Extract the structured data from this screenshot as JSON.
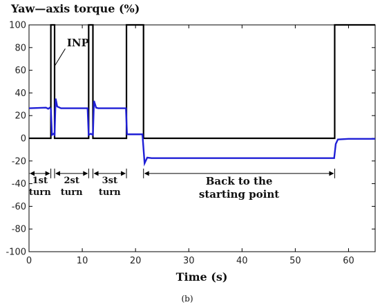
{
  "chart_data": {
    "type": "line",
    "title": "Yaw—axis torque (%)",
    "xlabel": "Time (s)",
    "ylabel": "",
    "panel_label": "(b)",
    "xlim": [
      0,
      65
    ],
    "ylim": [
      -100,
      100
    ],
    "x_ticks": [
      0,
      10,
      20,
      30,
      40,
      50,
      60
    ],
    "y_ticks": [
      100,
      80,
      60,
      40,
      20,
      0,
      -20,
      -40,
      -60,
      -80,
      -100
    ],
    "grid": false,
    "colors": {
      "inp": "#000000",
      "torque": "#1f1fd6",
      "axis": "#000000"
    },
    "series": [
      {
        "name": "INP",
        "points": [
          [
            0,
            0
          ],
          [
            4.1,
            0
          ],
          [
            4.1,
            100
          ],
          [
            4.8,
            100
          ],
          [
            4.8,
            0
          ],
          [
            11.2,
            0
          ],
          [
            11.2,
            100
          ],
          [
            12.0,
            100
          ],
          [
            12.0,
            0
          ],
          [
            18.3,
            0
          ],
          [
            18.3,
            100
          ],
          [
            21.5,
            100
          ],
          [
            21.5,
            0
          ],
          [
            57.4,
            0
          ],
          [
            57.4,
            100
          ],
          [
            65,
            100
          ]
        ]
      },
      {
        "name": "",
        "points": [
          [
            0,
            26.5
          ],
          [
            3.2,
            27
          ],
          [
            3.6,
            26
          ],
          [
            3.9,
            27
          ],
          [
            4.1,
            26
          ],
          [
            4.3,
            3
          ],
          [
            4.6,
            4
          ],
          [
            4.8,
            3
          ],
          [
            5.0,
            35
          ],
          [
            5.3,
            28
          ],
          [
            6,
            26.5
          ],
          [
            11.0,
            26.5
          ],
          [
            11.2,
            3
          ],
          [
            11.6,
            4
          ],
          [
            12.0,
            3
          ],
          [
            12.2,
            33
          ],
          [
            12.6,
            27
          ],
          [
            13,
            26.5
          ],
          [
            18.2,
            26.5
          ],
          [
            18.4,
            3.5
          ],
          [
            21.3,
            3.5
          ],
          [
            21.7,
            -22
          ],
          [
            22.2,
            -17
          ],
          [
            23,
            -17.5
          ],
          [
            30,
            -17.5
          ],
          [
            40,
            -17.5
          ],
          [
            50,
            -17.5
          ],
          [
            57.3,
            -17.5
          ],
          [
            57.6,
            -5
          ],
          [
            58,
            -1
          ],
          [
            60,
            -0.5
          ],
          [
            65,
            -0.5
          ]
        ]
      }
    ],
    "annotations": {
      "inp_label": "INP",
      "spans": [
        {
          "x0": 0,
          "x1": 4.1,
          "lines": [
            "1st",
            "turn"
          ]
        },
        {
          "x0": 4.8,
          "x1": 11.2,
          "lines": [
            "2st",
            "turn"
          ]
        },
        {
          "x0": 12.0,
          "x1": 18.3,
          "lines": [
            "3st",
            "turn"
          ]
        },
        {
          "x0": 21.5,
          "x1": 57.4,
          "lines": [
            "Back to the",
            "starting point"
          ]
        }
      ],
      "span_y": -31
    }
  }
}
